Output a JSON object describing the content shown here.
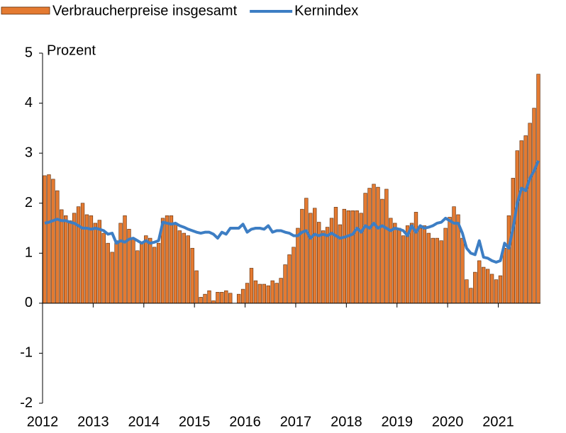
{
  "chart_data": {
    "type": "bar_line",
    "y_label": "Prozent",
    "categories": [
      "2012",
      null,
      null,
      null,
      null,
      null,
      null,
      null,
      null,
      null,
      null,
      null,
      "2013",
      null,
      null,
      null,
      null,
      null,
      null,
      null,
      null,
      null,
      null,
      null,
      "2014",
      null,
      null,
      null,
      null,
      null,
      null,
      null,
      null,
      null,
      null,
      null,
      "2015",
      null,
      null,
      null,
      null,
      null,
      null,
      null,
      null,
      null,
      null,
      null,
      "2016",
      null,
      null,
      null,
      null,
      null,
      null,
      null,
      null,
      null,
      null,
      null,
      "2017",
      null,
      null,
      null,
      null,
      null,
      null,
      null,
      null,
      null,
      null,
      null,
      "2018",
      null,
      null,
      null,
      null,
      null,
      null,
      null,
      null,
      null,
      null,
      null,
      "2019",
      null,
      null,
      null,
      null,
      null,
      null,
      null,
      null,
      null,
      null,
      null,
      "2020",
      null,
      null,
      null,
      null,
      null,
      null,
      null,
      null,
      null,
      null,
      null,
      "2021",
      null,
      null,
      null,
      null,
      null,
      null,
      null,
      null,
      null
    ],
    "series": [
      {
        "name": "Verbraucherpreise insgesamt",
        "kind": "bar",
        "color": "#e47a31",
        "values": [
          2.55,
          2.57,
          2.48,
          2.25,
          1.87,
          1.75,
          1.65,
          1.8,
          1.93,
          2.0,
          1.77,
          1.75,
          1.6,
          1.66,
          1.4,
          1.2,
          1.02,
          1.25,
          1.6,
          1.75,
          1.48,
          1.3,
          1.05,
          1.2,
          1.35,
          1.3,
          1.12,
          1.2,
          1.7,
          1.75,
          1.75,
          1.6,
          1.45,
          1.4,
          1.35,
          1.1,
          0.65,
          0.12,
          0.18,
          0.25,
          0.05,
          0.22,
          0.22,
          0.25,
          0.2,
          0.0,
          0.18,
          0.28,
          0.4,
          0.7,
          0.45,
          0.38,
          0.38,
          0.35,
          0.45,
          0.4,
          0.5,
          0.77,
          0.97,
          1.12,
          1.5,
          1.88,
          2.1,
          1.8,
          1.9,
          1.62,
          1.45,
          1.52,
          1.7,
          1.92,
          1.57,
          1.88,
          1.85,
          1.85,
          1.85,
          1.8,
          2.2,
          2.3,
          2.38,
          2.32,
          2.08,
          2.28,
          1.7,
          1.6,
          1.5,
          1.35,
          1.55,
          1.6,
          1.82,
          1.5,
          1.55,
          1.4,
          1.3,
          1.3,
          1.25,
          1.5,
          1.72,
          1.93,
          1.77,
          1.3,
          0.47,
          0.3,
          0.62,
          0.85,
          0.72,
          0.68,
          0.58,
          0.47,
          0.55,
          1.1,
          1.75,
          2.5,
          3.05,
          3.25,
          3.35,
          3.6,
          3.9,
          4.58
        ]
      },
      {
        "name": "Kernindex",
        "kind": "line",
        "color": "#3d7ec4",
        "values": [
          1.6,
          1.62,
          1.65,
          1.68,
          1.65,
          1.65,
          1.62,
          1.6,
          1.55,
          1.5,
          1.5,
          1.48,
          1.5,
          1.48,
          1.45,
          1.38,
          1.4,
          1.2,
          1.25,
          1.22,
          1.28,
          1.3,
          1.25,
          1.2,
          1.25,
          1.2,
          1.22,
          1.25,
          1.62,
          1.6,
          1.58,
          1.6,
          1.55,
          1.52,
          1.48,
          1.45,
          1.42,
          1.4,
          1.42,
          1.42,
          1.38,
          1.3,
          1.42,
          1.38,
          1.5,
          1.5,
          1.5,
          1.58,
          1.42,
          1.48,
          1.5,
          1.5,
          1.48,
          1.55,
          1.42,
          1.45,
          1.45,
          1.42,
          1.4,
          1.35,
          1.35,
          1.42,
          1.45,
          1.3,
          1.38,
          1.35,
          1.38,
          1.35,
          1.4,
          1.35,
          1.3,
          1.32,
          1.35,
          1.38,
          1.5,
          1.42,
          1.55,
          1.5,
          1.6,
          1.5,
          1.55,
          1.5,
          1.45,
          1.5,
          1.48,
          1.45,
          1.35,
          1.55,
          1.42,
          1.55,
          1.5,
          1.52,
          1.55,
          1.6,
          1.62,
          1.7,
          1.65,
          1.6,
          1.6,
          1.4,
          1.1,
          1.0,
          0.97,
          1.25,
          0.92,
          0.9,
          0.85,
          0.82,
          0.85,
          1.2,
          1.1,
          1.5,
          2.0,
          2.3,
          2.25,
          2.5,
          2.65,
          2.85
        ]
      }
    ],
    "ylim": [
      -2,
      5
    ],
    "yticks": [
      -2,
      -1,
      0,
      1,
      2,
      3,
      4,
      5
    ],
    "grid": false
  }
}
